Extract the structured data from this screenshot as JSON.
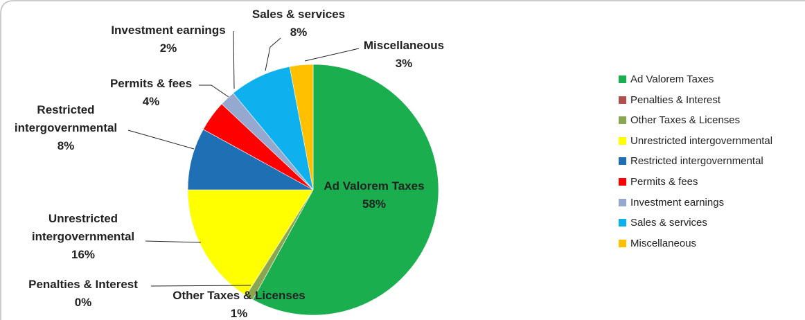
{
  "chart_data": {
    "type": "pie",
    "categories": [
      "Ad Valorem Taxes",
      "Penalties & Interest",
      "Other Taxes & Licenses",
      "Unrestricted intergovernmental",
      "Restricted intergovernmental",
      "Permits & fees",
      "Investment earnings",
      "Sales & services",
      "Miscellaneous"
    ],
    "values": [
      58,
      0,
      1,
      16,
      8,
      4,
      2,
      8,
      3
    ],
    "value_labels": [
      "58%",
      "0%",
      "1%",
      "16%",
      "8%",
      "4%",
      "2%",
      "8%",
      "3%"
    ],
    "colors": [
      "#1aae4e",
      "#b0504c",
      "#8aa650",
      "#ffff00",
      "#1f6fb5",
      "#ff0000",
      "#95a8d0",
      "#0fb0ee",
      "#ffc000"
    ],
    "legend": "right"
  }
}
